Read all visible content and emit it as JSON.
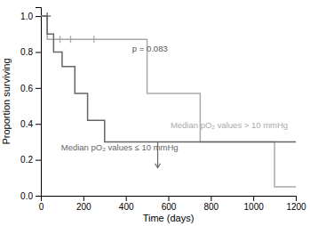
{
  "chart_data": {
    "type": "line",
    "xlabel": "Time (days)",
    "ylabel": "Proportion surviving",
    "xlim": [
      0,
      1200
    ],
    "ylim": [
      0,
      1.05
    ],
    "xticks": [
      0,
      200,
      400,
      600,
      800,
      1000,
      1200
    ],
    "yticks": [
      {
        "value": 0,
        "label": "0.0"
      },
      0.2,
      0.4,
      0.6,
      0.8,
      {
        "value": 1,
        "label": "1.0"
      }
    ],
    "grid": false,
    "series": [
      {
        "color": "#666666",
        "x": [
          0,
          30,
          30,
          60,
          60,
          100,
          100,
          160,
          160,
          220,
          220,
          300,
          300,
          550,
          550,
          1200
        ],
        "values": [
          1.0,
          1.0,
          0.9,
          0.9,
          0.8,
          0.8,
          0.72,
          0.72,
          0.57,
          0.57,
          0.42,
          0.42,
          0.3,
          0.3,
          0.3,
          0.3
        ],
        "censor_x": [
          30
        ],
        "censor_values": [
          1.0
        ],
        "arrow": {
          "x": 550,
          "y_start": 0.3,
          "y_end": 0.155
        }
      },
      {
        "color": "#aaaaaa",
        "x": [
          0,
          30,
          30,
          250,
          250,
          500,
          500,
          750,
          750,
          1100,
          1100,
          1200
        ],
        "values": [
          1.0,
          1.0,
          0.87,
          0.87,
          0.87,
          0.87,
          0.57,
          0.57,
          0.3,
          0.3,
          0.05,
          0.05
        ],
        "censor_x": [
          90,
          140,
          250
        ],
        "censor_values": [
          0.87,
          0.87,
          0.87
        ]
      }
    ],
    "annotations": [
      {
        "text": "p = 0.083",
        "x": 430,
        "y": 0.8,
        "color": "#555555"
      },
      {
        "text": "Median pO₂ values ≤ 10 mmHg",
        "x": 95,
        "y": 0.255,
        "color": "#666666"
      },
      {
        "text": "Median pO₂ values > 10 mmHg",
        "x": 610,
        "y": 0.375,
        "color": "#aaaaaa"
      }
    ]
  }
}
